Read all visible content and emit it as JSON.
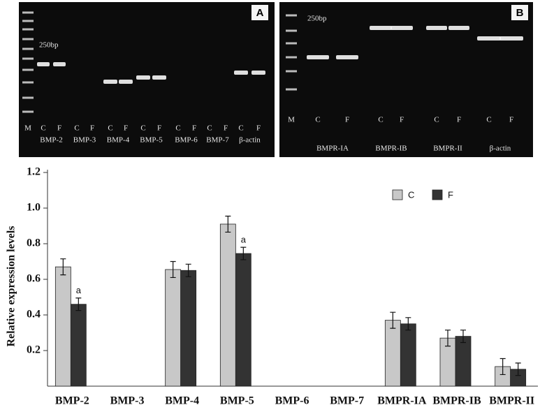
{
  "gels": [
    {
      "panel": "A",
      "size_marker": "250bp",
      "ladder": "M",
      "lanes": [
        "C",
        "F"
      ],
      "genes": [
        "BMP-2",
        "BMP-3",
        "BMP-4",
        "BMP-5",
        "BMP-6",
        "BMP-7",
        "β-actin"
      ]
    },
    {
      "panel": "B",
      "size_marker": "250bp",
      "ladder": "M",
      "lanes": [
        "C",
        "F"
      ],
      "genes": [
        "BMPR-IA",
        "BMPR-IB",
        "BMPR-II",
        "β-actin"
      ]
    }
  ],
  "chart_data": {
    "type": "bar",
    "y_label": "Relative expression levels",
    "categories": [
      "BMP-2",
      "BMP-3",
      "BMP-4",
      "BMP-5",
      "BMP-6",
      "BMP-7",
      "BMPR-IA",
      "BMPR-IB",
      "BMPR-II"
    ],
    "series": [
      {
        "name": "C",
        "color": "#c8c8c8",
        "values": [
          0.67,
          null,
          0.655,
          0.91,
          null,
          null,
          0.37,
          0.27,
          0.11
        ],
        "errors": [
          0.045,
          null,
          0.045,
          0.045,
          null,
          null,
          0.045,
          0.045,
          0.045
        ]
      },
      {
        "name": "F",
        "color": "#333333",
        "values": [
          0.46,
          null,
          0.65,
          0.745,
          null,
          null,
          0.35,
          0.28,
          0.095
        ],
        "errors": [
          0.035,
          null,
          0.035,
          0.035,
          null,
          null,
          0.035,
          0.035,
          0.035
        ],
        "significance": [
          "a",
          null,
          null,
          "a",
          null,
          null,
          null,
          null,
          null
        ]
      }
    ],
    "ylim": [
      0,
      1.2
    ],
    "yticks": [
      0.2,
      0.4,
      0.6,
      0.8,
      {
        "value": 1,
        "label": "1.0"
      },
      1.2
    ],
    "legend": "upper right"
  }
}
